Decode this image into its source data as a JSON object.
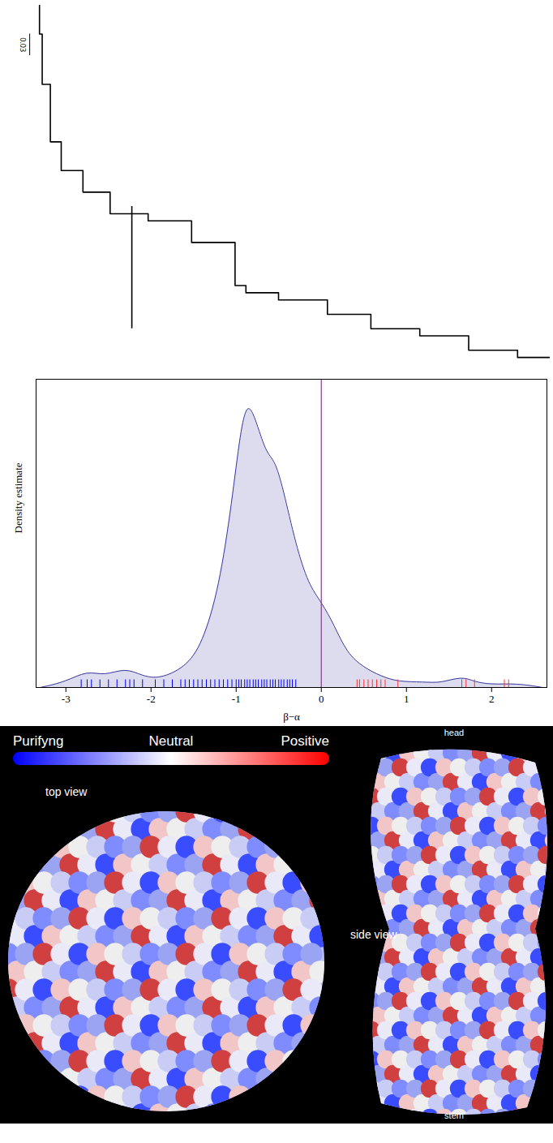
{
  "chart_data": [
    {
      "type": "tree",
      "color": "#000000",
      "tick_labels": false,
      "xlim": [
        0,
        1
      ],
      "ylim": [
        0,
        0.5
      ],
      "scale_bar": {
        "value": 0.03,
        "label": "0.03"
      },
      "backbone": {
        "x": [
          0.06,
          0.065,
          0.08,
          0.1,
          0.14,
          0.19,
          0.26,
          0.34,
          0.42,
          0.44,
          0.5,
          0.59,
          0.67,
          0.76,
          0.85,
          0.94,
          1.0
        ],
        "y": [
          0,
          0.04,
          0.11,
          0.19,
          0.23,
          0.26,
          0.29,
          0.3,
          0.33,
          0.39,
          0.4,
          0.41,
          0.43,
          0.45,
          0.46,
          0.48,
          0.49
        ]
      },
      "branches": [
        {
          "x": 0.23,
          "y": [
            0.28,
            0.45
          ]
        }
      ]
    },
    {
      "type": "area",
      "x_label": "β−α",
      "y_label": "Density estimate",
      "color": "#dcdcee",
      "line_color": "#3a3aa0",
      "x": [
        -3.3,
        -3.0,
        -2.75,
        -2.55,
        -2.3,
        -2.1,
        -1.9,
        -1.6,
        -1.4,
        -1.2,
        -1.05,
        -0.95,
        -0.87,
        -0.78,
        -0.65,
        -0.55,
        -0.45,
        -0.3,
        -0.15,
        0,
        0.15,
        0.3,
        0.5,
        0.7,
        0.9,
        1.2,
        1.4,
        1.65,
        1.8,
        2.0,
        2.3,
        2.6
      ],
      "values": [
        0.0,
        0.02,
        0.06,
        0.04,
        0.07,
        0.04,
        0.03,
        0.07,
        0.15,
        0.35,
        0.65,
        0.9,
        1.0,
        0.95,
        0.82,
        0.8,
        0.7,
        0.5,
        0.36,
        0.3,
        0.22,
        0.12,
        0.07,
        0.04,
        0.02,
        0.02,
        0.015,
        0.04,
        0.02,
        0.01,
        0.015,
        0.0
      ],
      "xlim": [
        -3.35,
        2.65
      ],
      "xticks": [
        -3,
        -2,
        -1,
        0,
        1,
        2
      ],
      "ylim": [
        0,
        1.08
      ],
      "tick_labels": "x",
      "reference_line": {
        "x": 0,
        "color": "#8b3a8b"
      },
      "rug": [
        {
          "color": "#0000ff",
          "values": [
            -2.82,
            -2.75,
            -2.7,
            -2.6,
            -2.5,
            -2.4,
            -2.3,
            -2.25,
            -2.2,
            -2.1,
            -1.95,
            -1.85,
            -1.75,
            -1.65,
            -1.6,
            -1.55,
            -1.5,
            -1.45,
            -1.4,
            -1.35,
            -1.3,
            -1.25,
            -1.2,
            -1.15,
            -1.1,
            -1.05,
            -1.0,
            -0.97,
            -0.94,
            -0.9,
            -0.87,
            -0.84,
            -0.8,
            -0.77,
            -0.74,
            -0.7,
            -0.67,
            -0.64,
            -0.6,
            -0.57,
            -0.54,
            -0.5,
            -0.47,
            -0.44,
            -0.4,
            -0.37,
            -0.34,
            -0.3
          ]
        },
        {
          "color": "#ff3333",
          "values": [
            0.42,
            0.45,
            0.5,
            0.55,
            0.6,
            0.65,
            0.7,
            0.75,
            0.9,
            1.65,
            1.7,
            1.8,
            2.15,
            2.2
          ]
        }
      ]
    }
  ],
  "structure_panel": {
    "colorbar": {
      "labels": [
        "Purifyng",
        "Neutral",
        "Positive"
      ],
      "colors": [
        "#0000ff",
        "#ffffff",
        "#ff0000"
      ]
    },
    "views": [
      {
        "label": "top view"
      },
      {
        "label": "side view",
        "top": "head",
        "bottom": "stem"
      }
    ]
  }
}
